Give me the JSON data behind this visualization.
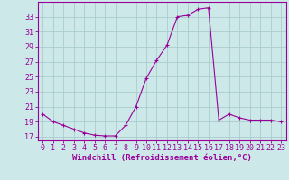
{
  "x": [
    0,
    1,
    2,
    3,
    4,
    5,
    6,
    7,
    8,
    9,
    10,
    11,
    12,
    13,
    14,
    15,
    16,
    17,
    18,
    19,
    20,
    21,
    22,
    23
  ],
  "y": [
    20.0,
    19.0,
    18.5,
    18.0,
    17.5,
    17.2,
    17.1,
    17.1,
    18.5,
    21.0,
    24.8,
    27.2,
    29.2,
    33.0,
    33.2,
    34.0,
    34.2,
    19.2,
    20.0,
    19.5,
    19.2,
    19.2,
    19.2,
    19.0
  ],
  "line_color": "#990099",
  "marker": "+",
  "marker_size": 3,
  "marker_linewidth": 0.8,
  "line_width": 0.8,
  "background_color": "#cce8e8",
  "grid_color": "#aacccc",
  "xlabel": "Windchill (Refroidissement éolien,°C)",
  "xlim": [
    -0.5,
    23.5
  ],
  "ylim": [
    16.5,
    35.0
  ],
  "yticks": [
    17,
    19,
    21,
    23,
    25,
    27,
    29,
    31,
    33
  ],
  "xtick_labels": [
    "0",
    "1",
    "2",
    "3",
    "4",
    "5",
    "6",
    "7",
    "8",
    "9",
    "10",
    "11",
    "12",
    "13",
    "14",
    "15",
    "16",
    "17",
    "18",
    "19",
    "20",
    "21",
    "22",
    "23"
  ],
  "tick_color": "#990099",
  "label_color": "#990099",
  "label_fontsize": 6.5,
  "tick_fontsize": 6.0,
  "spine_color": "#990099"
}
